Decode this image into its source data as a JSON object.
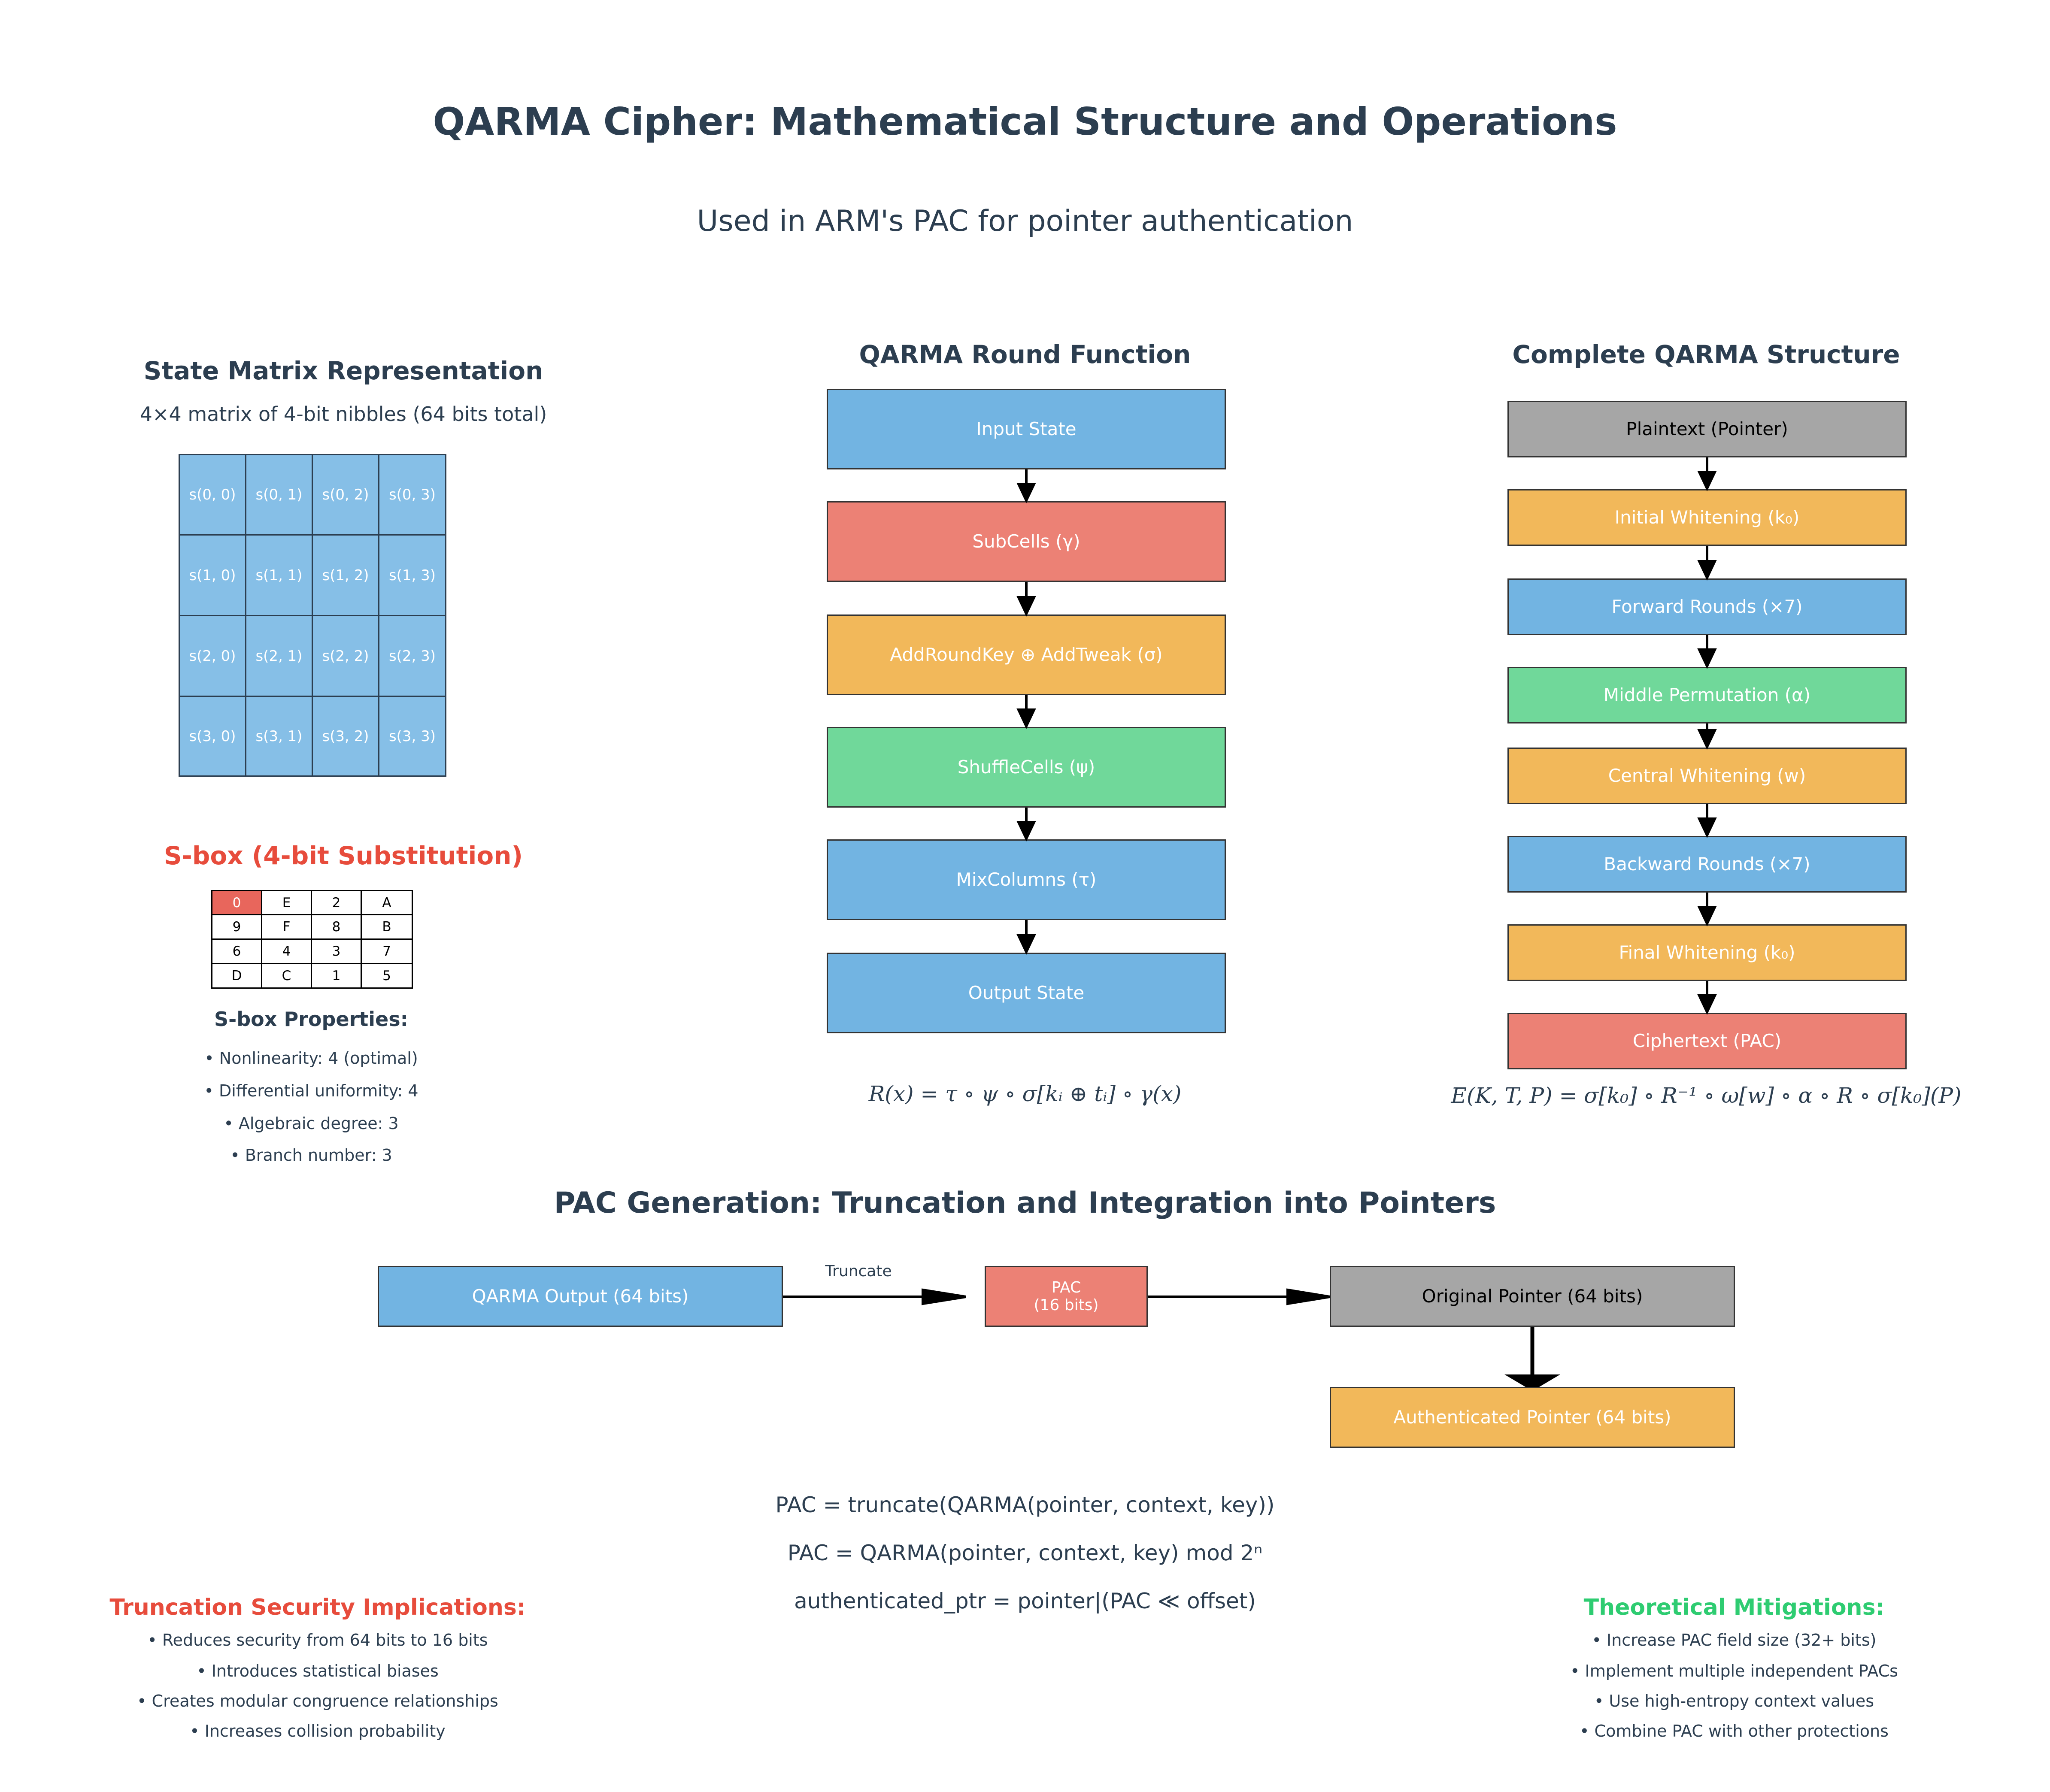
{
  "header": {
    "title": "QARMA Cipher: Mathematical Structure and Operations",
    "subtitle": "Used in ARM's PAC for pointer authentication"
  },
  "state_matrix": {
    "title": "State Matrix Representation",
    "caption": "4×4 matrix of 4-bit nibbles (64 bits total)",
    "cells": [
      [
        "s(0, 0)",
        "s(0, 1)",
        "s(0, 2)",
        "s(0, 3)"
      ],
      [
        "s(1, 0)",
        "s(1, 1)",
        "s(1, 2)",
        "s(1, 3)"
      ],
      [
        "s(2, 0)",
        "s(2, 1)",
        "s(2, 2)",
        "s(2, 3)"
      ],
      [
        "s(3, 0)",
        "s(3, 1)",
        "s(3, 2)",
        "s(3, 3)"
      ]
    ]
  },
  "sbox": {
    "title": "S-box (4-bit Substitution)",
    "table": [
      [
        "0",
        "E",
        "2",
        "A"
      ],
      [
        "9",
        "F",
        "8",
        "B"
      ],
      [
        "6",
        "4",
        "3",
        "7"
      ],
      [
        "D",
        "C",
        "1",
        "5"
      ]
    ],
    "properties_title": "S-box Properties:",
    "properties": [
      "• Nonlinearity: 4 (optimal)",
      "• Differential uniformity: 4",
      "• Algebraic degree: 3",
      "• Branch number: 3"
    ]
  },
  "round_function": {
    "title": "QARMA Round Function",
    "steps": [
      "Input State",
      "SubCells (γ)",
      "AddRoundKey ⊕ AddTweak (σ)",
      "ShuffleCells (ψ)",
      "MixColumns (τ)",
      "Output State"
    ],
    "formula": "R(x) = τ ∘ ψ ∘ σ[kᵢ ⊕ tᵢ] ∘ γ(x)"
  },
  "structure": {
    "title": "Complete QARMA Structure",
    "steps": [
      "Plaintext (Pointer)",
      "Initial Whitening (k₀)",
      "Forward Rounds (×7)",
      "Middle Permutation (α)",
      "Central Whitening (w)",
      "Backward Rounds (×7)",
      "Final Whitening (k₀)",
      "Ciphertext (PAC)"
    ],
    "formula": "E(K, T, P) = σ[k₀] ∘ R⁻¹ ∘ ω[w] ∘ α ∘ R ∘ σ[k₀](P)"
  },
  "pac": {
    "title": "PAC Generation: Truncation and Integration into Pointers",
    "qarma_output": "QARMA Output (64 bits)",
    "truncate_label": "Truncate",
    "pac_line1": "PAC",
    "pac_line2": "(16 bits)",
    "original_pointer": "Original Pointer (64 bits)",
    "authenticated_pointer": "Authenticated Pointer (64 bits)",
    "formulas": [
      "PAC = truncate(QARMA(pointer, context, key))",
      "PAC = QARMA(pointer, context, key) mod 2ⁿ",
      "authenticated_ptr = pointer|(PAC ≪ offset)"
    ]
  },
  "truncation": {
    "title": "Truncation Security Implications:",
    "items": [
      "• Reduces security from 64 bits to 16 bits",
      "• Introduces statistical biases",
      "• Creates modular congruence relationships",
      "• Increases collision probability"
    ]
  },
  "mitigations": {
    "title": "Theoretical Mitigations:",
    "items": [
      "• Increase PAC field size (32+ bits)",
      "• Implement multiple independent PACs",
      "• Use high-entropy context values",
      "• Combine PAC with other protections"
    ]
  },
  "colors": {
    "blue": "#72b4e2",
    "red": "#ec8175",
    "orange": "#f2b85a",
    "green": "#70d89a",
    "grey": "#a6a6a6",
    "title_dark": "#2c3e50",
    "warning_red": "#e74c3c",
    "mitigation_green": "#2ecc71"
  }
}
